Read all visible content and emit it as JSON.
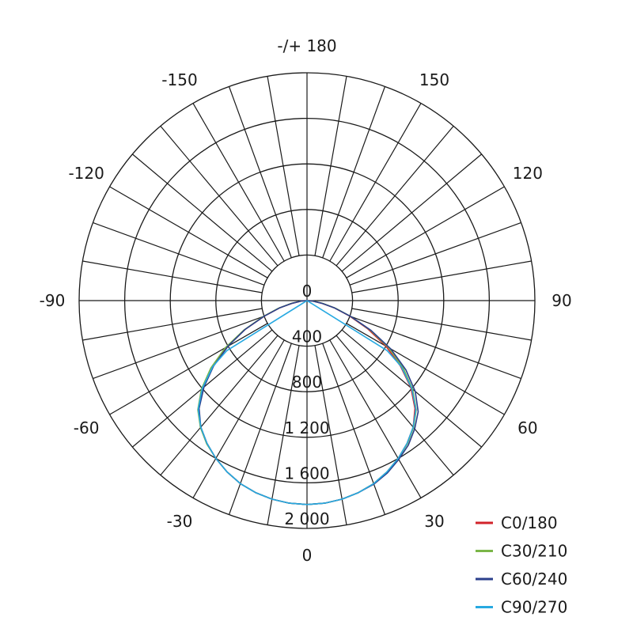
{
  "chart_data": {
    "type": "polar-line",
    "title": "",
    "angle_tick_labels": [
      {
        "angle": 180,
        "label": "-/+ 180"
      },
      {
        "angle": 150,
        "label": "150"
      },
      {
        "angle": -150,
        "label": "-150"
      },
      {
        "angle": 120,
        "label": "120"
      },
      {
        "angle": -120,
        "label": "-120"
      },
      {
        "angle": 90,
        "label": "90"
      },
      {
        "angle": -90,
        "label": "-90"
      },
      {
        "angle": 60,
        "label": "60"
      },
      {
        "angle": -60,
        "label": "-60"
      },
      {
        "angle": 30,
        "label": "30"
      },
      {
        "angle": -30,
        "label": "-30"
      },
      {
        "angle": 0,
        "label": "0"
      }
    ],
    "radial_tick_labels": [
      {
        "value": 0,
        "label": "0"
      },
      {
        "value": 400,
        "label": "400"
      },
      {
        "value": 800,
        "label": "800"
      },
      {
        "value": 1200,
        "label": "1 200"
      },
      {
        "value": 1600,
        "label": "1 600"
      },
      {
        "value": 2000,
        "label": "2 000"
      }
    ],
    "radial_range": [
      0,
      2000
    ],
    "angular_grid_step_deg": 10,
    "grid": true,
    "legend_position": "bottom-right",
    "series": [
      {
        "name": "C0/180",
        "color": "#d2232a",
        "points": [
          [
            -90,
            0
          ],
          [
            -85,
            50
          ],
          [
            -80,
            130
          ],
          [
            -75,
            250
          ],
          [
            -70,
            400
          ],
          [
            -65,
            600
          ],
          [
            -60,
            820
          ],
          [
            -55,
            1020
          ],
          [
            -50,
            1200
          ],
          [
            -45,
            1350
          ],
          [
            -40,
            1450
          ],
          [
            -35,
            1530
          ],
          [
            -30,
            1600
          ],
          [
            -25,
            1660
          ],
          [
            -20,
            1710
          ],
          [
            -15,
            1745
          ],
          [
            -10,
            1770
          ],
          [
            -5,
            1785
          ],
          [
            0,
            1790
          ],
          [
            5,
            1785
          ],
          [
            10,
            1770
          ],
          [
            15,
            1745
          ],
          [
            20,
            1710
          ],
          [
            25,
            1660
          ],
          [
            30,
            1600
          ],
          [
            35,
            1530
          ],
          [
            40,
            1450
          ],
          [
            45,
            1340
          ],
          [
            50,
            1190
          ],
          [
            55,
            1000
          ],
          [
            60,
            800
          ],
          [
            65,
            590
          ],
          [
            70,
            400
          ],
          [
            75,
            250
          ],
          [
            80,
            130
          ],
          [
            85,
            50
          ],
          [
            90,
            0
          ]
        ]
      },
      {
        "name": "C30/210",
        "color": "#7ab648",
        "points": [
          [
            -90,
            0
          ],
          [
            -85,
            55
          ],
          [
            -80,
            140
          ],
          [
            -75,
            260
          ],
          [
            -70,
            410
          ],
          [
            -65,
            610
          ],
          [
            -60,
            830
          ],
          [
            -55,
            1030
          ],
          [
            -50,
            1210
          ],
          [
            -45,
            1355
          ],
          [
            -40,
            1455
          ],
          [
            -35,
            1535
          ],
          [
            -30,
            1600
          ],
          [
            -25,
            1660
          ],
          [
            -20,
            1710
          ],
          [
            -15,
            1745
          ],
          [
            -10,
            1770
          ],
          [
            -5,
            1785
          ],
          [
            0,
            1790
          ],
          [
            5,
            1785
          ],
          [
            10,
            1770
          ],
          [
            15,
            1745
          ],
          [
            20,
            1710
          ],
          [
            25,
            1660
          ],
          [
            30,
            1600
          ],
          [
            35,
            1535
          ],
          [
            40,
            1455
          ],
          [
            45,
            1355
          ],
          [
            50,
            1210
          ],
          [
            55,
            1030
          ],
          [
            60,
            830
          ],
          [
            65,
            610
          ],
          [
            70,
            410
          ],
          [
            75,
            260
          ],
          [
            80,
            140
          ],
          [
            85,
            55
          ],
          [
            90,
            0
          ]
        ]
      },
      {
        "name": "C60/240",
        "color": "#2b3f8c",
        "points": [
          [
            -90,
            0
          ],
          [
            -85,
            50
          ],
          [
            -80,
            130
          ],
          [
            -75,
            250
          ],
          [
            -70,
            400
          ],
          [
            -65,
            600
          ],
          [
            -60,
            800
          ],
          [
            -55,
            1000
          ],
          [
            -50,
            1180
          ],
          [
            -45,
            1340
          ],
          [
            -40,
            1450
          ],
          [
            -35,
            1530
          ],
          [
            -30,
            1600
          ],
          [
            -25,
            1660
          ],
          [
            -20,
            1710
          ],
          [
            -15,
            1745
          ],
          [
            -10,
            1770
          ],
          [
            -5,
            1785
          ],
          [
            0,
            1790
          ],
          [
            5,
            1785
          ],
          [
            10,
            1770
          ],
          [
            15,
            1745
          ],
          [
            20,
            1715
          ],
          [
            25,
            1670
          ],
          [
            30,
            1610
          ],
          [
            35,
            1550
          ],
          [
            40,
            1470
          ],
          [
            45,
            1380
          ],
          [
            50,
            1240
          ],
          [
            55,
            1060
          ],
          [
            60,
            850
          ],
          [
            65,
            620
          ],
          [
            70,
            410
          ],
          [
            75,
            250
          ],
          [
            80,
            130
          ],
          [
            85,
            50
          ],
          [
            90,
            0
          ]
        ]
      },
      {
        "name": "C90/270",
        "color": "#27a9e1",
        "points": [
          [
            -90,
            0
          ],
          [
            -58,
            830
          ],
          [
            -55,
            1010
          ],
          [
            -50,
            1200
          ],
          [
            -45,
            1350
          ],
          [
            -40,
            1450
          ],
          [
            -35,
            1530
          ],
          [
            -30,
            1600
          ],
          [
            -25,
            1660
          ],
          [
            -20,
            1710
          ],
          [
            -15,
            1745
          ],
          [
            -10,
            1770
          ],
          [
            -5,
            1785
          ],
          [
            0,
            1790
          ],
          [
            5,
            1785
          ],
          [
            10,
            1770
          ],
          [
            15,
            1745
          ],
          [
            20,
            1710
          ],
          [
            25,
            1660
          ],
          [
            30,
            1600
          ],
          [
            35,
            1530
          ],
          [
            40,
            1450
          ],
          [
            45,
            1350
          ],
          [
            50,
            1200
          ],
          [
            55,
            1010
          ],
          [
            58,
            830
          ],
          [
            90,
            0
          ]
        ]
      }
    ]
  }
}
